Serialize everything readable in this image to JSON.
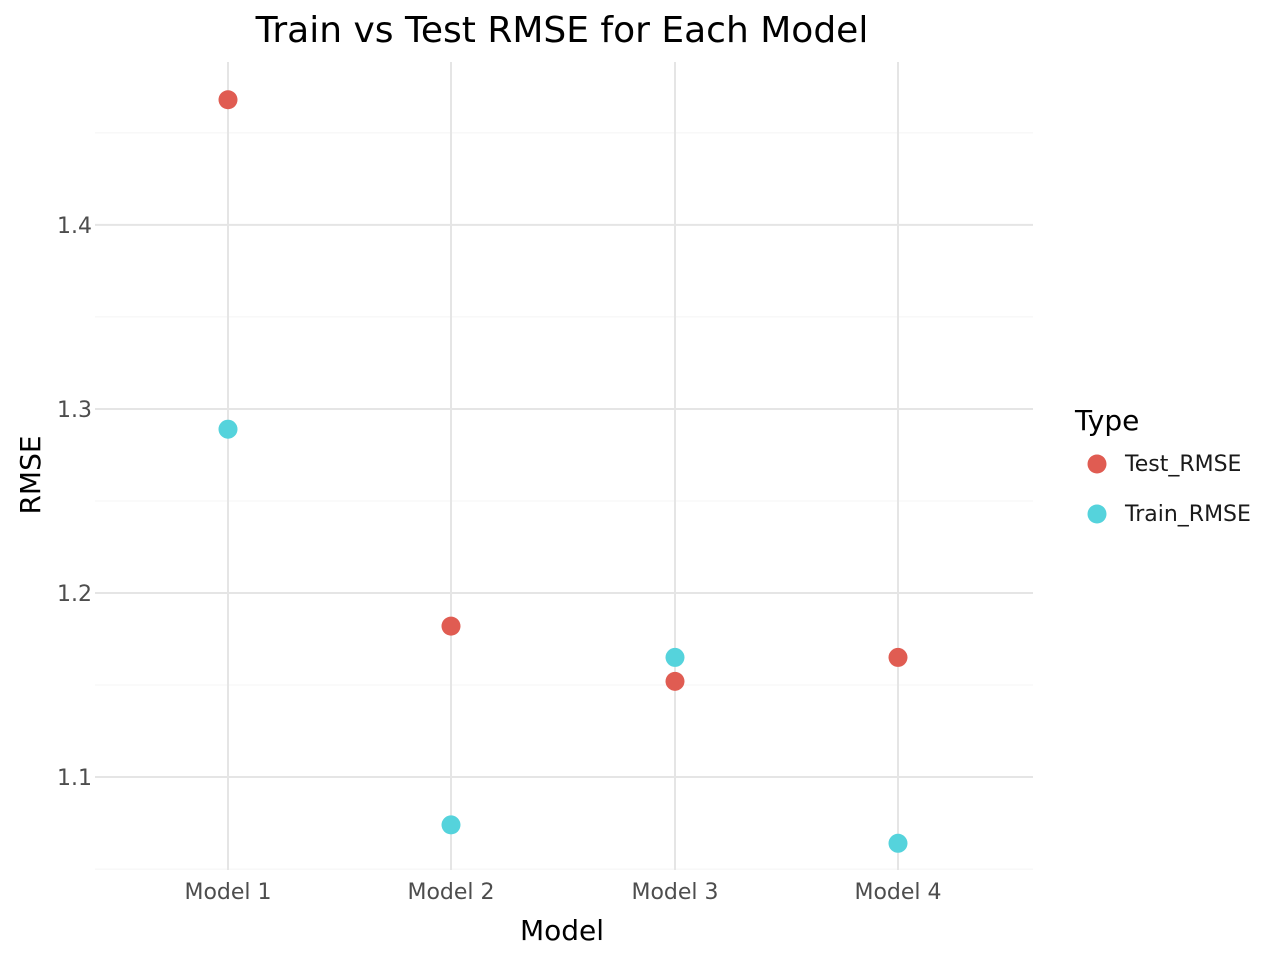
{
  "chart_data": {
    "type": "scatter",
    "title": "Train vs Test RMSE for Each Model",
    "xlabel": "Model",
    "ylabel": "RMSE",
    "categories": [
      "Model 1",
      "Model 2",
      "Model 3",
      "Model 4"
    ],
    "y_ticks": [
      "1.1",
      "1.2",
      "1.3",
      "1.4"
    ],
    "ylim": [
      1.0495,
      1.4885
    ],
    "grid": true,
    "legend": {
      "title": "Type",
      "position": "right"
    },
    "series": [
      {
        "name": "Test_RMSE",
        "color": "#e05c52",
        "values": [
          1.468,
          1.182,
          1.152,
          1.165
        ]
      },
      {
        "name": "Train_RMSE",
        "color": "#55d3dc",
        "values": [
          1.289,
          1.074,
          1.165,
          1.064
        ]
      }
    ]
  }
}
